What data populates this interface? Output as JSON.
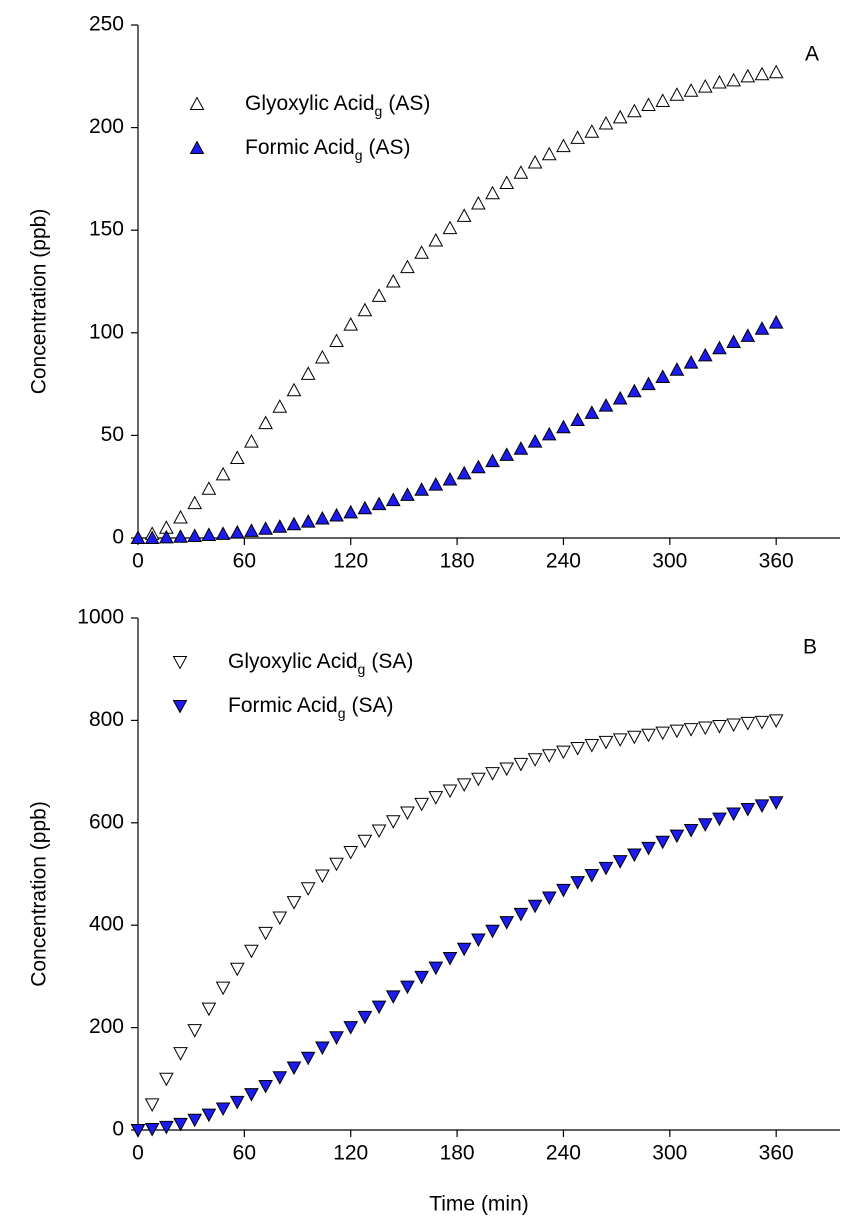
{
  "chart_data": [
    {
      "type": "scatter",
      "panel_label": "A",
      "y_label": "Concentration (ppb)",
      "xlim": [
        0,
        396
      ],
      "xticks": [
        0,
        60,
        120,
        180,
        240,
        300,
        360
      ],
      "ylim": [
        0,
        250
      ],
      "yticks": [
        0,
        50,
        100,
        150,
        200,
        250
      ],
      "legend": "upper left",
      "series": [
        {
          "name": "Glyoxylic Acid",
          "name_subscript": "g",
          "name_suffix": "(AS)",
          "marker": "triangle-up",
          "color": "#ffffff",
          "x": [
            0,
            8,
            16,
            24,
            32,
            40,
            48,
            56,
            64,
            72,
            80,
            88,
            96,
            104,
            112,
            120,
            128,
            136,
            144,
            152,
            160,
            168,
            176,
            184,
            192,
            200,
            208,
            216,
            224,
            232,
            240,
            248,
            256,
            264,
            272,
            280,
            288,
            296,
            304,
            312,
            320,
            328,
            336,
            344,
            352,
            360
          ],
          "values": [
            0,
            2,
            5,
            10,
            17,
            24,
            31,
            39,
            47,
            56,
            64,
            72,
            80,
            88,
            96,
            104,
            111,
            118,
            125,
            132,
            139,
            145,
            151,
            157,
            163,
            168,
            173,
            178,
            183,
            187,
            191,
            195,
            198,
            202,
            205,
            208,
            211,
            213,
            216,
            218,
            220,
            222,
            223,
            225,
            226,
            227
          ]
        },
        {
          "name": "Formic Acid",
          "name_subscript": "g",
          "name_suffix": "(AS)",
          "marker": "triangle-up",
          "color": "#1c1cf0",
          "x": [
            0,
            8,
            16,
            24,
            32,
            40,
            48,
            56,
            64,
            72,
            80,
            88,
            96,
            104,
            112,
            120,
            128,
            136,
            144,
            152,
            160,
            168,
            176,
            184,
            192,
            200,
            208,
            216,
            224,
            232,
            240,
            248,
            256,
            264,
            272,
            280,
            288,
            296,
            304,
            312,
            320,
            328,
            336,
            344,
            352,
            360
          ],
          "values": [
            0,
            0,
            0.3,
            0.6,
            1,
            1.5,
            2,
            2.7,
            3.5,
            4.5,
            5.5,
            6.7,
            8,
            9.5,
            11,
            12.5,
            14.5,
            16.5,
            18.5,
            21,
            23.5,
            26,
            28.5,
            31.5,
            34.5,
            37.5,
            40.5,
            43.5,
            47,
            50.5,
            54,
            57.5,
            61,
            64.5,
            68,
            71.5,
            75,
            78.5,
            82,
            85.5,
            89,
            92.5,
            95.5,
            98.5,
            102,
            105
          ]
        }
      ]
    },
    {
      "type": "scatter",
      "panel_label": "B",
      "y_label": "Concentration (ppb)",
      "x_label": "Time (min)",
      "xlim": [
        0,
        396
      ],
      "xticks": [
        0,
        60,
        120,
        180,
        240,
        300,
        360
      ],
      "ylim": [
        0,
        1000
      ],
      "yticks": [
        0,
        200,
        400,
        600,
        800,
        1000
      ],
      "legend": "upper left",
      "series": [
        {
          "name": "Glyoxylic Acid",
          "name_subscript": "g",
          "name_suffix": "(SA)",
          "marker": "triangle-down",
          "color": "#ffffff",
          "x": [
            0,
            8,
            16,
            24,
            32,
            40,
            48,
            56,
            64,
            72,
            80,
            88,
            96,
            104,
            112,
            120,
            128,
            136,
            144,
            152,
            160,
            168,
            176,
            184,
            192,
            200,
            208,
            216,
            224,
            232,
            240,
            248,
            256,
            264,
            272,
            280,
            288,
            296,
            304,
            312,
            320,
            328,
            336,
            344,
            352,
            360
          ],
          "values": [
            0,
            50,
            100,
            150,
            195,
            237,
            278,
            315,
            350,
            385,
            415,
            445,
            472,
            497,
            520,
            543,
            565,
            585,
            603,
            620,
            637,
            650,
            663,
            675,
            686,
            697,
            706,
            715,
            724,
            732,
            739,
            746,
            752,
            758,
            763,
            768,
            772,
            776,
            780,
            783,
            786,
            789,
            792,
            795,
            797,
            800
          ]
        },
        {
          "name": "Formic Acid",
          "name_subscript": "g",
          "name_suffix": "(SA)",
          "marker": "triangle-down",
          "color": "#1c1cf0",
          "x": [
            0,
            8,
            16,
            24,
            32,
            40,
            48,
            56,
            64,
            72,
            80,
            88,
            96,
            104,
            112,
            120,
            128,
            136,
            144,
            152,
            160,
            168,
            176,
            184,
            192,
            200,
            208,
            216,
            224,
            232,
            240,
            248,
            256,
            264,
            272,
            280,
            288,
            296,
            304,
            312,
            320,
            328,
            336,
            344,
            352,
            360
          ],
          "values": [
            0,
            2,
            6,
            12,
            20,
            30,
            42,
            55,
            70,
            86,
            103,
            122,
            141,
            161,
            181,
            201,
            221,
            241,
            261,
            280,
            299,
            317,
            336,
            354,
            372,
            389,
            406,
            422,
            438,
            454,
            469,
            484,
            498,
            512,
            525,
            538,
            551,
            563,
            575,
            586,
            597,
            608,
            618,
            627,
            634,
            640
          ]
        }
      ]
    }
  ]
}
